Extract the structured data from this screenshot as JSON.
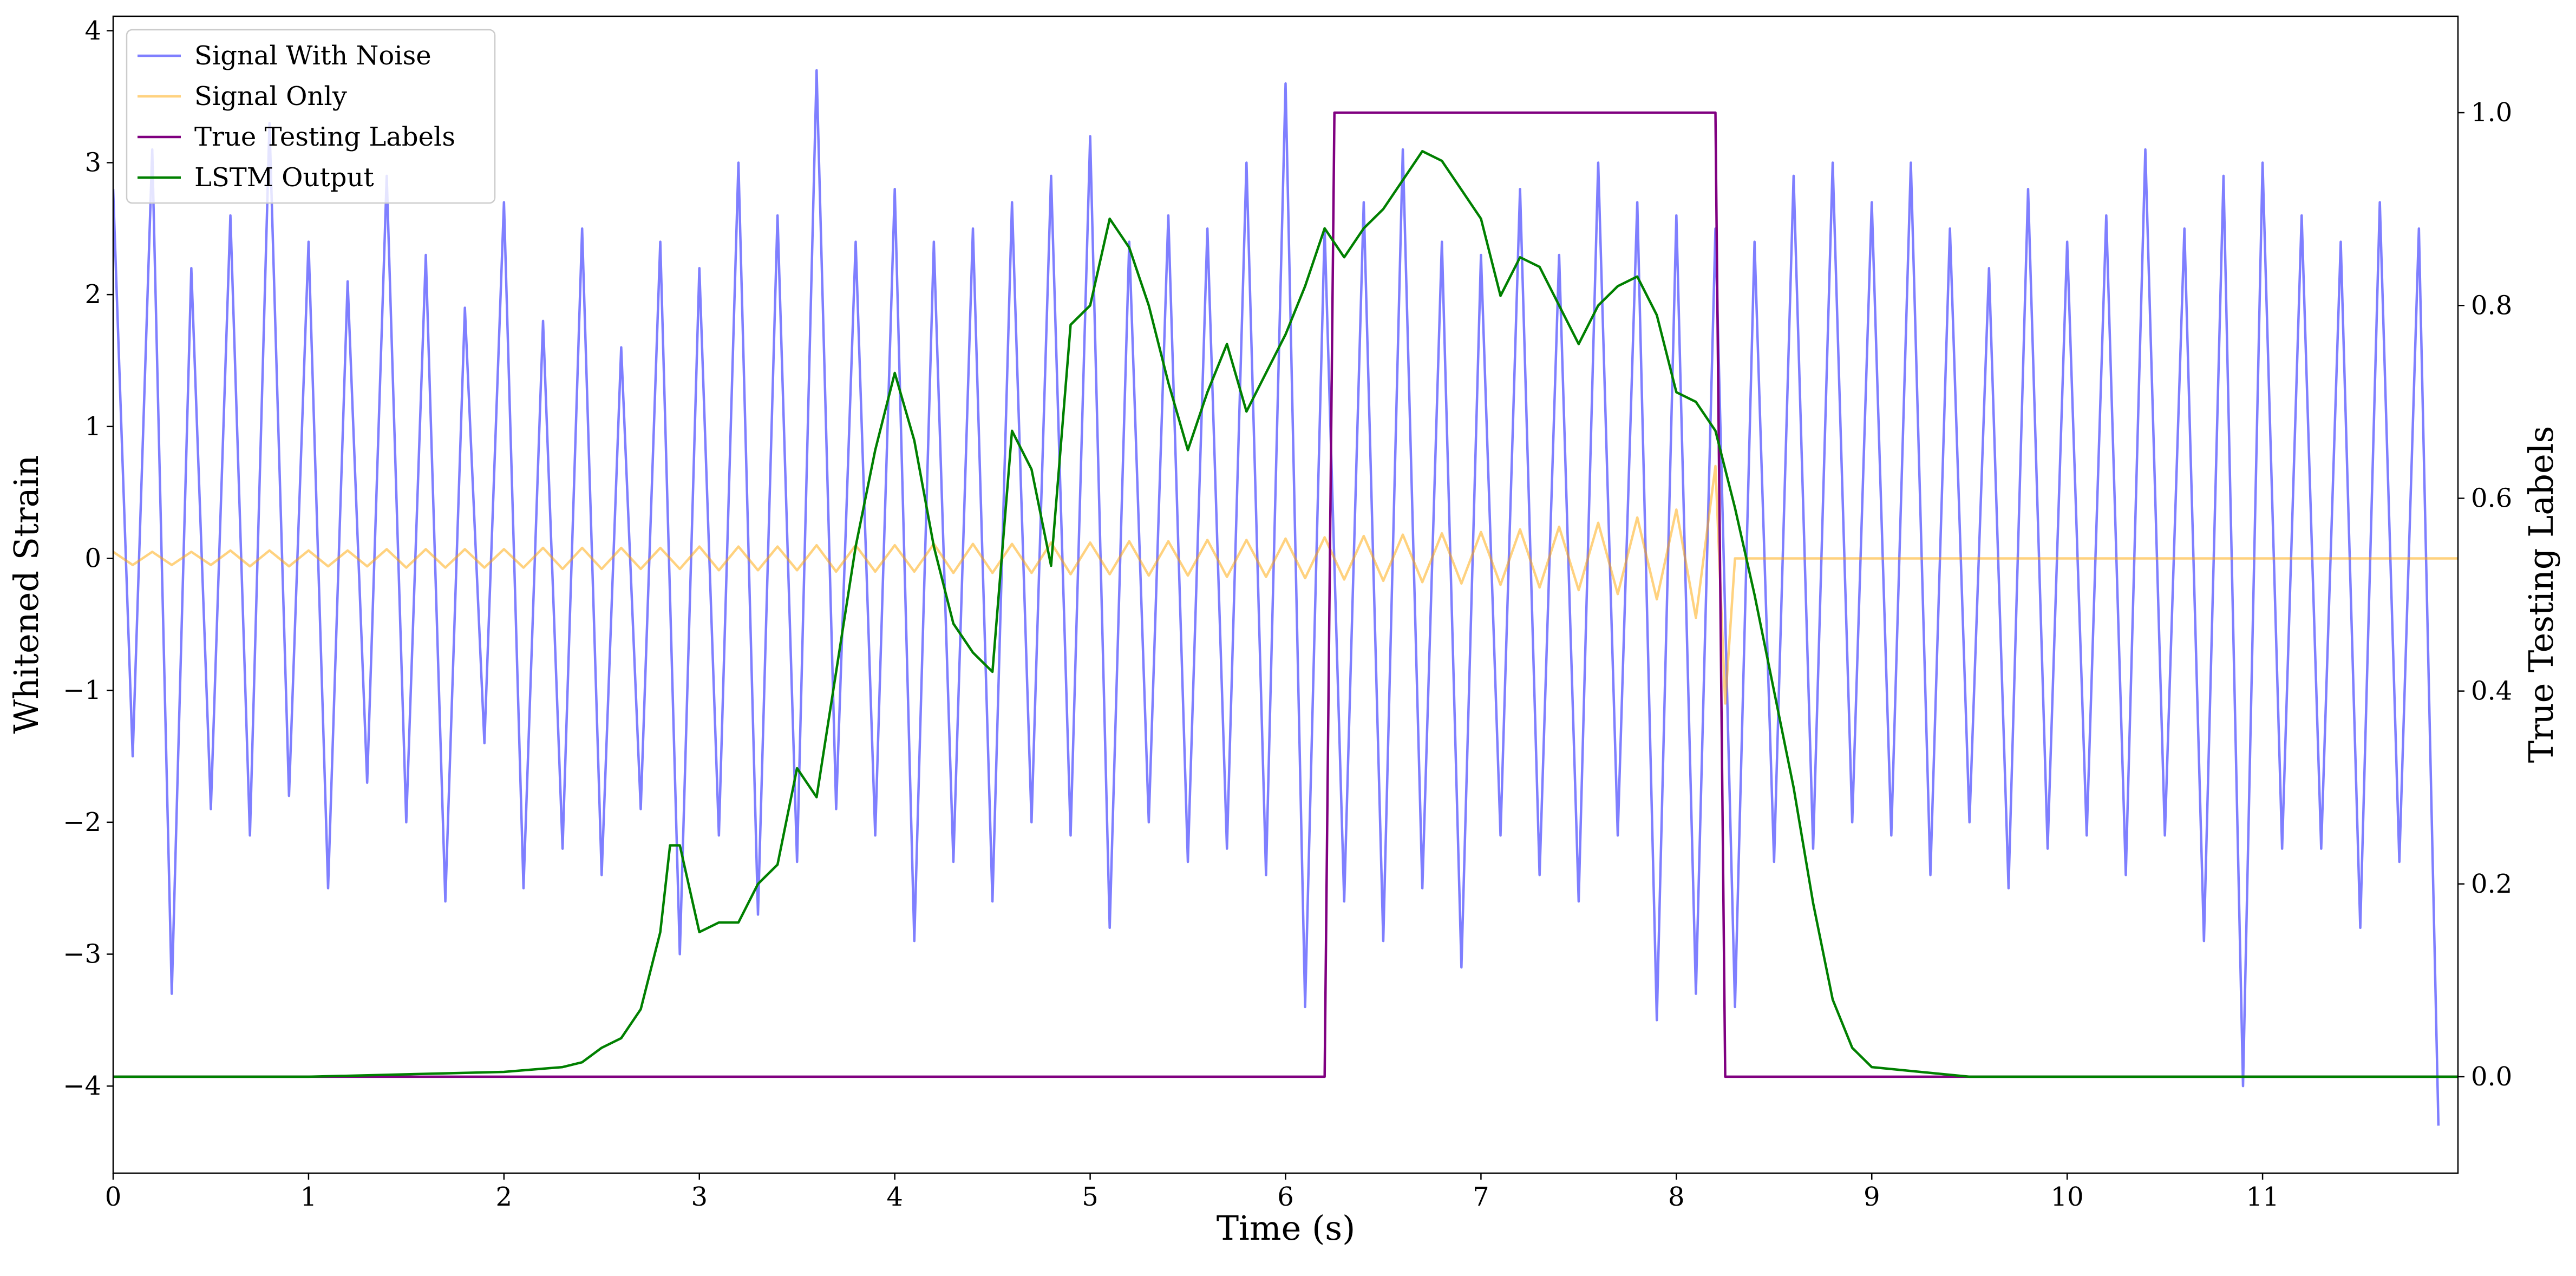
{
  "chart_data": {
    "type": "line",
    "x_label": "Time (s)",
    "y_label": "Whitened Strain",
    "y2_label": "True Testing Labels",
    "xlim": [
      0,
      12
    ],
    "xticks": [
      0,
      1,
      2,
      3,
      4,
      5,
      6,
      7,
      8,
      9,
      10,
      11
    ],
    "ylim": [
      -4.66,
      4.11
    ],
    "yticks": [
      {
        "value": -4,
        "label": "−4"
      },
      {
        "value": -3,
        "label": "−3"
      },
      {
        "value": -2,
        "label": "−2"
      },
      {
        "value": -1,
        "label": "−1"
      },
      0,
      1,
      2,
      3,
      4
    ],
    "y2lim": [
      -0.1,
      1.1
    ],
    "y2ticks": [
      {
        "value": 0,
        "label": "0.0"
      },
      0.2,
      0.4,
      0.6,
      0.8,
      {
        "value": 1,
        "label": "1.0"
      }
    ],
    "legend": "upper left",
    "series": [
      {
        "name": "Signal With Noise",
        "color": "#0000ff",
        "alpha": 0.5,
        "axis": "y",
        "x": [
          0,
          0.1,
          0.2,
          0.3,
          0.4,
          0.5,
          0.6,
          0.7,
          0.8,
          0.9,
          1,
          1.1,
          1.2,
          1.3,
          1.4,
          1.5,
          1.6,
          1.7,
          1.8,
          1.9,
          2,
          2.1,
          2.2,
          2.3,
          2.4,
          2.5,
          2.6,
          2.7,
          2.8,
          2.9,
          3,
          3.1,
          3.2,
          3.3,
          3.4,
          3.5,
          3.6,
          3.7,
          3.8,
          3.9,
          4,
          4.1,
          4.2,
          4.3,
          4.4,
          4.5,
          4.6,
          4.7,
          4.8,
          4.9,
          5,
          5.1,
          5.2,
          5.3,
          5.4,
          5.5,
          5.6,
          5.7,
          5.8,
          5.9,
          6,
          6.1,
          6.2,
          6.3,
          6.4,
          6.5,
          6.6,
          6.7,
          6.8,
          6.9,
          7,
          7.1,
          7.2,
          7.3,
          7.4,
          7.5,
          7.6,
          7.7,
          7.8,
          7.9,
          8,
          8.1,
          8.2,
          8.3,
          8.4,
          8.5,
          8.6,
          8.7,
          8.8,
          8.9,
          9,
          9.1,
          9.2,
          9.3,
          9.4,
          9.5,
          9.6,
          9.7,
          9.8,
          9.9,
          10,
          10.1,
          10.2,
          10.3,
          10.4,
          10.5,
          10.6,
          10.7,
          10.8,
          10.9,
          11,
          11.1,
          11.2,
          11.3,
          11.4,
          11.5,
          11.6,
          11.7,
          11.8,
          11.9
        ],
        "values": [
          2.8,
          -1.5,
          3.1,
          -3.3,
          2.2,
          -1.9,
          2.6,
          -2.1,
          3.3,
          -1.8,
          2.4,
          -2.5,
          2.1,
          -1.7,
          2.9,
          -2.0,
          2.3,
          -2.6,
          1.9,
          -1.4,
          2.7,
          -2.5,
          1.8,
          -2.2,
          2.5,
          -2.4,
          1.6,
          -1.9,
          2.4,
          -3.0,
          2.2,
          -2.1,
          3.0,
          -2.7,
          2.6,
          -2.3,
          3.7,
          -1.9,
          2.4,
          -2.1,
          2.8,
          -2.9,
          2.4,
          -2.3,
          2.5,
          -2.6,
          2.7,
          -2.0,
          2.9,
          -2.1,
          3.2,
          -2.8,
          2.4,
          -2.0,
          2.6,
          -2.3,
          2.5,
          -2.2,
          3.0,
          -2.4,
          3.6,
          -3.4,
          2.5,
          -2.6,
          2.7,
          -2.9,
          3.1,
          -2.5,
          2.4,
          -3.1,
          2.3,
          -2.1,
          2.8,
          -2.4,
          2.3,
          -2.6,
          3.0,
          -2.1,
          2.7,
          -3.5,
          2.6,
          -3.3,
          2.5,
          -3.4,
          2.4,
          -2.3,
          2.9,
          -2.2,
          3.0,
          -2.0,
          2.7,
          -2.1,
          3.0,
          -2.4,
          2.5,
          -2.0,
          2.2,
          -2.5,
          2.8,
          -2.2,
          2.4,
          -2.1,
          2.6,
          -2.4,
          3.1,
          -2.1,
          2.5,
          -2.9,
          2.9,
          -4.0,
          3.0,
          -2.2,
          2.6,
          -2.2,
          2.4,
          -2.8,
          2.7,
          -2.3,
          2.5,
          -4.3
        ]
      },
      {
        "name": "Signal Only",
        "color": "#ffa500",
        "alpha": 0.5,
        "axis": "y",
        "x": [
          0,
          0.1,
          0.2,
          0.3,
          0.4,
          0.5,
          0.6,
          0.7,
          0.8,
          0.9,
          1,
          1.1,
          1.2,
          1.3,
          1.4,
          1.5,
          1.6,
          1.7,
          1.8,
          1.9,
          2,
          2.1,
          2.2,
          2.3,
          2.4,
          2.5,
          2.6,
          2.7,
          2.8,
          2.9,
          3,
          3.1,
          3.2,
          3.3,
          3.4,
          3.5,
          3.6,
          3.7,
          3.8,
          3.9,
          4,
          4.1,
          4.2,
          4.3,
          4.4,
          4.5,
          4.6,
          4.7,
          4.8,
          4.9,
          5,
          5.1,
          5.2,
          5.3,
          5.4,
          5.5,
          5.6,
          5.7,
          5.8,
          5.9,
          6,
          6.1,
          6.2,
          6.3,
          6.4,
          6.5,
          6.6,
          6.7,
          6.8,
          6.9,
          7,
          7.1,
          7.2,
          7.3,
          7.4,
          7.5,
          7.6,
          7.7,
          7.8,
          7.9,
          8,
          8.1,
          8.2,
          8.25,
          8.3,
          12
        ],
        "values": [
          0.05,
          -0.05,
          0.05,
          -0.05,
          0.05,
          -0.05,
          0.06,
          -0.06,
          0.06,
          -0.06,
          0.06,
          -0.06,
          0.06,
          -0.06,
          0.07,
          -0.07,
          0.07,
          -0.07,
          0.07,
          -0.07,
          0.07,
          -0.07,
          0.08,
          -0.08,
          0.08,
          -0.08,
          0.08,
          -0.08,
          0.08,
          -0.08,
          0.09,
          -0.09,
          0.09,
          -0.09,
          0.09,
          -0.09,
          0.1,
          -0.1,
          0.1,
          -0.1,
          0.1,
          -0.1,
          0.11,
          -0.11,
          0.11,
          -0.11,
          0.11,
          -0.11,
          0.12,
          -0.12,
          0.12,
          -0.12,
          0.13,
          -0.13,
          0.13,
          -0.13,
          0.14,
          -0.14,
          0.14,
          -0.14,
          0.15,
          -0.15,
          0.16,
          -0.16,
          0.17,
          -0.17,
          0.18,
          -0.18,
          0.19,
          -0.19,
          0.2,
          -0.2,
          0.22,
          -0.22,
          0.24,
          -0.24,
          0.27,
          -0.27,
          0.31,
          -0.31,
          0.37,
          -0.45,
          0.7,
          -1.1,
          0,
          0
        ]
      },
      {
        "name": "True Testing Labels",
        "color": "#800080",
        "axis": "y2",
        "x": [
          0,
          6.2,
          6.25,
          8.2,
          8.25,
          12
        ],
        "values": [
          0,
          0,
          1,
          1,
          0,
          0
        ]
      },
      {
        "name": "LSTM Output",
        "color": "#008000",
        "axis": "y2",
        "x": [
          0,
          1,
          2,
          2.3,
          2.4,
          2.5,
          2.6,
          2.7,
          2.8,
          2.85,
          2.9,
          3,
          3.1,
          3.2,
          3.3,
          3.4,
          3.5,
          3.6,
          3.7,
          3.8,
          3.9,
          4,
          4.1,
          4.2,
          4.3,
          4.4,
          4.5,
          4.6,
          4.7,
          4.8,
          4.9,
          5,
          5.1,
          5.2,
          5.3,
          5.4,
          5.5,
          5.6,
          5.7,
          5.8,
          5.9,
          6,
          6.1,
          6.2,
          6.3,
          6.4,
          6.5,
          6.6,
          6.7,
          6.8,
          6.9,
          7,
          7.1,
          7.2,
          7.3,
          7.4,
          7.5,
          7.6,
          7.7,
          7.8,
          7.9,
          8,
          8.1,
          8.2,
          8.3,
          8.4,
          8.5,
          8.6,
          8.7,
          8.8,
          8.9,
          9,
          9.5,
          12
        ],
        "values": [
          0,
          0,
          0.005,
          0.01,
          0.015,
          0.03,
          0.04,
          0.07,
          0.15,
          0.24,
          0.24,
          0.15,
          0.16,
          0.16,
          0.2,
          0.22,
          0.32,
          0.29,
          0.42,
          0.55,
          0.65,
          0.73,
          0.66,
          0.55,
          0.47,
          0.44,
          0.42,
          0.67,
          0.63,
          0.53,
          0.78,
          0.8,
          0.89,
          0.86,
          0.8,
          0.72,
          0.65,
          0.71,
          0.76,
          0.69,
          0.73,
          0.77,
          0.82,
          0.88,
          0.85,
          0.88,
          0.9,
          0.93,
          0.96,
          0.95,
          0.92,
          0.89,
          0.81,
          0.85,
          0.84,
          0.8,
          0.76,
          0.8,
          0.82,
          0.83,
          0.79,
          0.71,
          0.7,
          0.67,
          0.59,
          0.5,
          0.4,
          0.3,
          0.18,
          0.08,
          0.03,
          0.01,
          0,
          0
        ]
      }
    ]
  }
}
